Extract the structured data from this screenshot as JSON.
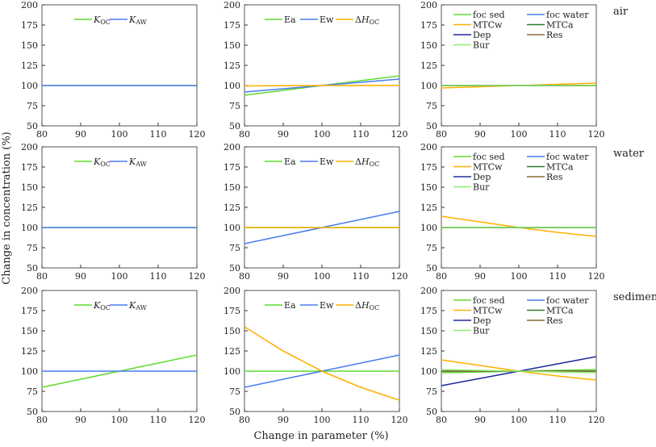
{
  "chart_data": {
    "type": "line",
    "xlabel": "Change in parameter (%)",
    "ylabel": "Change in concentration (%)",
    "xlim": [
      80,
      120
    ],
    "ylim": [
      50,
      200
    ],
    "xticks": [
      80,
      90,
      100,
      110,
      120
    ],
    "yticks": [
      50,
      75,
      100,
      125,
      150,
      175,
      200
    ],
    "grid": false,
    "x": [
      80,
      90,
      100,
      110,
      120
    ],
    "rows": [
      "air",
      "water",
      "sediment"
    ],
    "colors": {
      "green": "#5fdc2e",
      "blue": "#4a7cf0",
      "orange": "#ffb000",
      "darkgreen": "#2f7a2f",
      "navy": "#1e2d9c",
      "brown": "#8a6a3c",
      "lightgreen": "#8cf06a"
    },
    "panels": [
      {
        "row": "air",
        "column": 1,
        "legend": "top",
        "series": [
          {
            "name": "KOC",
            "color": "green",
            "values": [
              100,
              100,
              100,
              100,
              100
            ]
          },
          {
            "name": "KAW",
            "color": "blue",
            "values": [
              100,
              100,
              100,
              100,
              100
            ]
          }
        ]
      },
      {
        "row": "air",
        "column": 2,
        "legend": "top",
        "series": [
          {
            "name": "Ea",
            "color": "green",
            "values": [
              88,
              94,
              100,
              106,
              112
            ]
          },
          {
            "name": "Ew",
            "color": "blue",
            "values": [
              92,
              96,
              100,
              104,
              108
            ]
          },
          {
            "name": "ΔHOC",
            "color": "orange",
            "values": [
              99.5,
              99.8,
              100,
              100.1,
              100.2
            ]
          }
        ]
      },
      {
        "row": "air",
        "column": 3,
        "legend": "top-left",
        "series": [
          {
            "name": "foc sed",
            "color": "green",
            "values": [
              100,
              100,
              100,
              100,
              100
            ]
          },
          {
            "name": "foc water",
            "color": "blue",
            "values": [
              100,
              100,
              100,
              100,
              100
            ]
          },
          {
            "name": "MTCw",
            "color": "orange",
            "values": [
              97,
              98.5,
              100,
              101.5,
              103
            ]
          },
          {
            "name": "MTCa",
            "color": "darkgreen",
            "values": [
              100,
              100,
              100,
              100,
              100
            ]
          },
          {
            "name": "Dep",
            "color": "navy",
            "values": [
              100,
              100,
              100,
              100,
              100
            ]
          },
          {
            "name": "Res",
            "color": "brown",
            "values": [
              100,
              100,
              100,
              100,
              100
            ]
          },
          {
            "name": "Bur",
            "color": "lightgreen",
            "values": [
              100,
              100,
              100,
              100,
              100
            ]
          }
        ]
      },
      {
        "row": "water",
        "column": 1,
        "legend": "top",
        "series": [
          {
            "name": "KOC",
            "color": "green",
            "values": [
              100,
              100,
              100,
              100,
              100
            ]
          },
          {
            "name": "KAW",
            "color": "blue",
            "values": [
              100,
              100,
              100,
              100,
              100
            ]
          }
        ]
      },
      {
        "row": "water",
        "column": 2,
        "legend": "top",
        "series": [
          {
            "name": "Ea",
            "color": "green",
            "values": [
              100,
              100,
              100,
              100,
              100
            ]
          },
          {
            "name": "Ew",
            "color": "blue",
            "values": [
              80,
              90,
              100,
              110,
              120
            ]
          },
          {
            "name": "ΔHOC",
            "color": "orange",
            "values": [
              100,
              100,
              100,
              100,
              100
            ]
          }
        ]
      },
      {
        "row": "water",
        "column": 3,
        "legend": "top-left",
        "series": [
          {
            "name": "foc sed",
            "color": "green",
            "values": [
              100,
              100,
              100,
              100,
              100
            ]
          },
          {
            "name": "foc water",
            "color": "blue",
            "values": [
              100,
              100,
              100,
              100,
              100
            ]
          },
          {
            "name": "MTCw",
            "color": "orange",
            "values": [
              114,
              107,
              100,
              94,
              89
            ]
          },
          {
            "name": "MTCa",
            "color": "darkgreen",
            "values": [
              100,
              100,
              100,
              100,
              100
            ]
          },
          {
            "name": "Dep",
            "color": "navy",
            "values": [
              100,
              100,
              100,
              100,
              100
            ]
          },
          {
            "name": "Res",
            "color": "brown",
            "values": [
              100,
              100,
              100,
              100,
              100
            ]
          },
          {
            "name": "Bur",
            "color": "lightgreen",
            "values": [
              100,
              100,
              100,
              100,
              100
            ]
          }
        ]
      },
      {
        "row": "sediment",
        "column": 1,
        "legend": "top",
        "series": [
          {
            "name": "KOC",
            "color": "green",
            "values": [
              80,
              90,
              100,
              110,
              120
            ]
          },
          {
            "name": "KAW",
            "color": "blue",
            "values": [
              100,
              100,
              100,
              100,
              100
            ]
          }
        ]
      },
      {
        "row": "sediment",
        "column": 2,
        "legend": "top",
        "series": [
          {
            "name": "Ea",
            "color": "green",
            "values": [
              100,
              100,
              100,
              100,
              100
            ]
          },
          {
            "name": "Ew",
            "color": "blue",
            "values": [
              80,
              90,
              100,
              110,
              120
            ]
          },
          {
            "name": "ΔHOC",
            "color": "orange",
            "values": [
              155,
              125,
              100,
              80,
              64
            ]
          }
        ]
      },
      {
        "row": "sediment",
        "column": 3,
        "legend": "top-left",
        "series": [
          {
            "name": "foc sed",
            "color": "green",
            "values": [
              98,
              99,
              100,
              101,
              102
            ]
          },
          {
            "name": "foc water",
            "color": "blue",
            "values": [
              100,
              100,
              100,
              100,
              100
            ]
          },
          {
            "name": "MTCw",
            "color": "orange",
            "values": [
              114,
              107,
              100,
              94,
              89
            ]
          },
          {
            "name": "MTCa",
            "color": "darkgreen",
            "values": [
              100,
              100,
              100,
              100,
              100
            ]
          },
          {
            "name": "Dep",
            "color": "navy",
            "values": [
              82,
              91,
              100,
              109,
              118
            ]
          },
          {
            "name": "Res",
            "color": "brown",
            "values": [
              100,
              100,
              100,
              100,
              100
            ]
          },
          {
            "name": "Bur",
            "color": "lightgreen",
            "values": [
              102,
              101,
              100,
              99,
              98
            ]
          }
        ]
      }
    ]
  }
}
